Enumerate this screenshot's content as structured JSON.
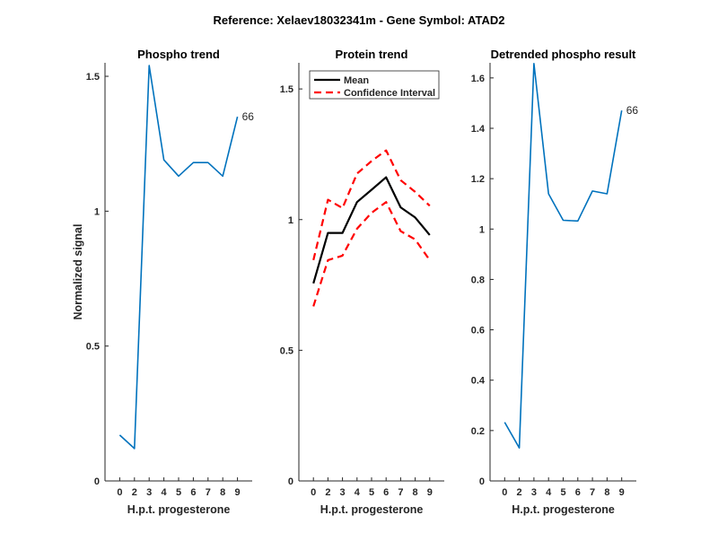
{
  "figure_title": "Reference:  Xelaev18032341m - Gene Symbol:  ATAD2",
  "chart_data": [
    {
      "type": "line",
      "title": "Phospho trend",
      "xlabel": "H.p.t. progesterone",
      "ylabel": "Normalized signal",
      "categories": [
        "0",
        "2",
        "3",
        "4",
        "5",
        "6",
        "7",
        "8",
        "9"
      ],
      "ylim": [
        0,
        1.55
      ],
      "yticks": [
        0,
        0.5,
        1,
        1.5
      ],
      "ytick_labels": [
        "0",
        "0.5",
        "1",
        "1.5"
      ],
      "series": [
        {
          "name": "Phospho",
          "color": "#0072BD",
          "values": [
            0.17,
            0.12,
            1.54,
            1.19,
            1.13,
            1.18,
            1.18,
            1.13,
            1.35
          ]
        }
      ],
      "end_label": "66"
    },
    {
      "type": "line",
      "title": "Protein trend",
      "xlabel": "H.p.t. progesterone",
      "ylabel": "",
      "categories": [
        "0",
        "2",
        "3",
        "4",
        "5",
        "6",
        "7",
        "8",
        "9"
      ],
      "ylim": [
        0,
        1.6
      ],
      "yticks": [
        0,
        0.5,
        1,
        1.5
      ],
      "ytick_labels": [
        "0",
        "0.5",
        "1",
        "1.5"
      ],
      "legend": "top-left",
      "series": [
        {
          "name": "Mean",
          "color": "#000000",
          "dashed": false,
          "values": [
            0.756,
            0.949,
            0.949,
            1.067,
            1.114,
            1.162,
            1.047,
            1.008,
            0.941
          ]
        },
        {
          "name": "Confidence Interval",
          "color": "#FF0000",
          "dashed": true,
          "values": [
            0.845,
            1.076,
            1.044,
            1.176,
            1.224,
            1.265,
            1.151,
            1.106,
            1.053
          ]
        },
        {
          "name": "Confidence Interval (lower)",
          "color": "#FF0000",
          "dashed": true,
          "legend": false,
          "values": [
            0.668,
            0.845,
            0.862,
            0.965,
            1.026,
            1.067,
            0.956,
            0.924,
            0.845
          ]
        }
      ]
    },
    {
      "type": "line",
      "title": "Detrended phospho result",
      "xlabel": "H.p.t. progesterone",
      "ylabel": "",
      "categories": [
        "0",
        "2",
        "3",
        "4",
        "5",
        "6",
        "7",
        "8",
        "9"
      ],
      "ylim": [
        0,
        1.66
      ],
      "yticks": [
        0,
        0.2,
        0.4,
        0.6,
        0.8,
        1,
        1.2,
        1.4,
        1.6
      ],
      "ytick_labels": [
        "0",
        "0.2",
        "0.4",
        "0.6",
        "0.8",
        "1",
        "1.2",
        "1.4",
        "1.6"
      ],
      "series": [
        {
          "name": "Detrended",
          "color": "#0072BD",
          "values": [
            0.233,
            0.131,
            1.657,
            1.14,
            1.035,
            1.032,
            1.151,
            1.14,
            1.471
          ]
        }
      ],
      "end_label": "66"
    }
  ]
}
